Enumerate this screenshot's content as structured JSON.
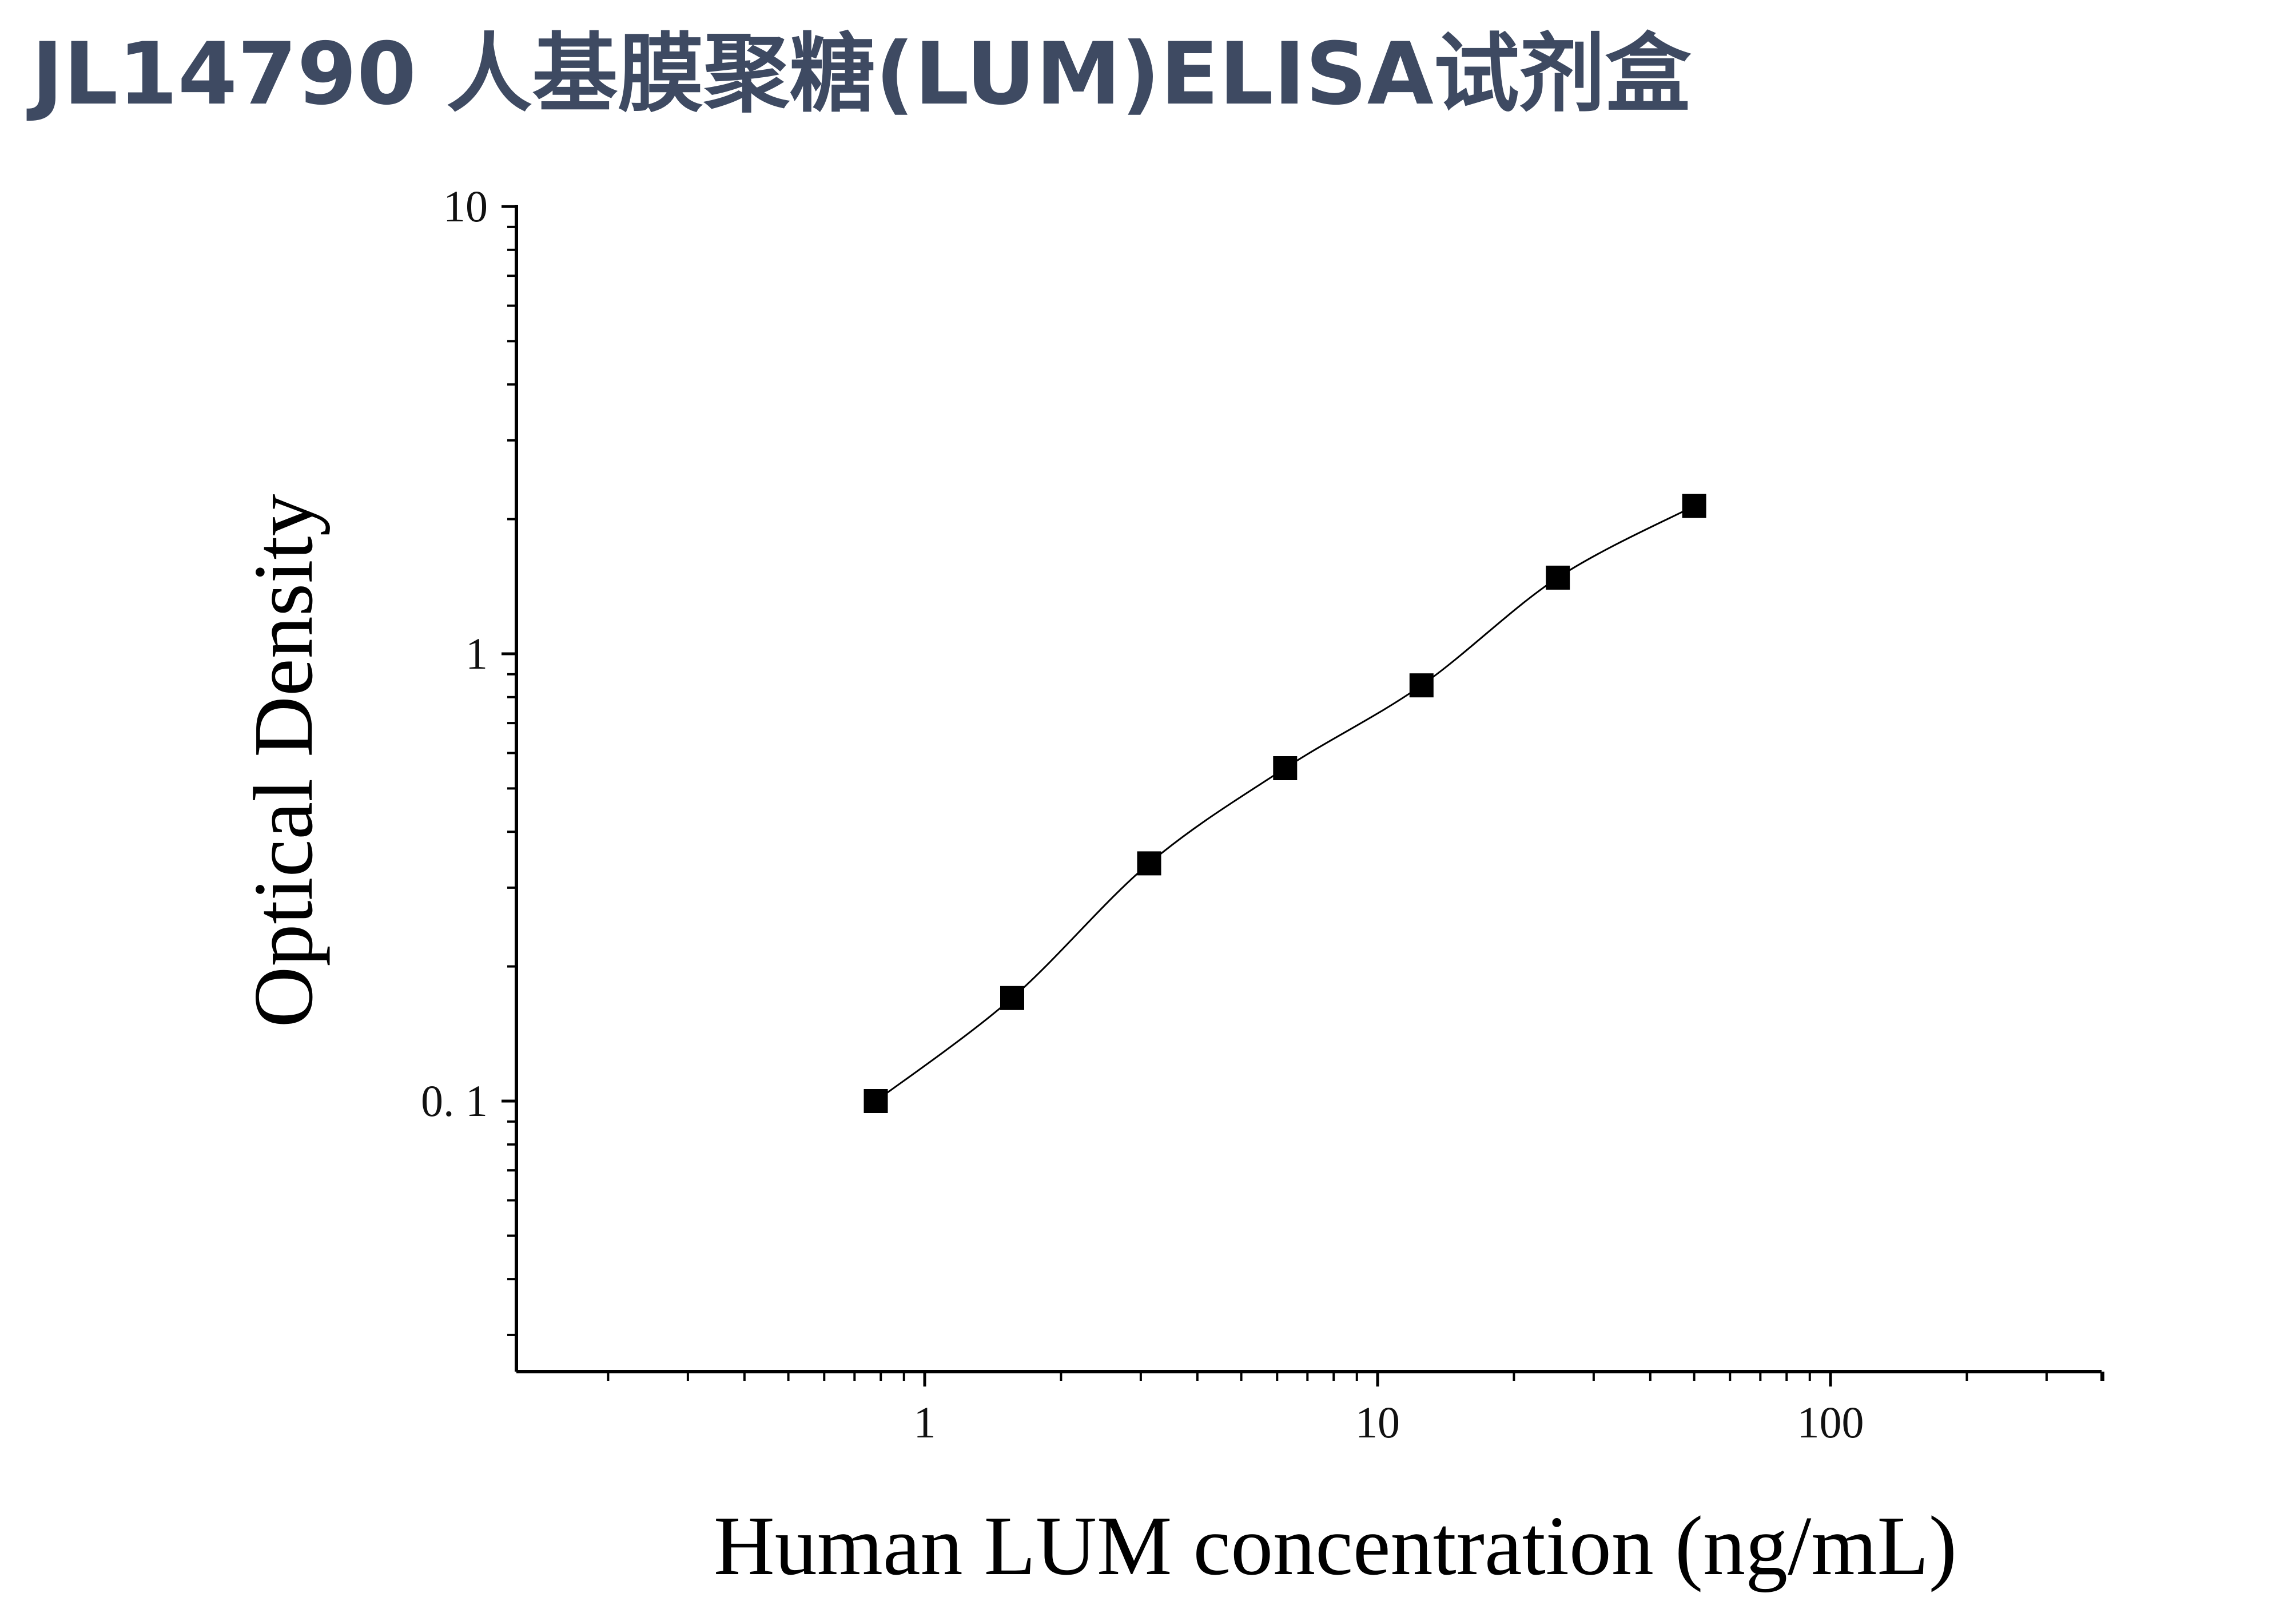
{
  "page": {
    "title": "JL14790 人基膜聚糖(LUM)ELISA试剂盒"
  },
  "colors": {
    "title": "#3e4a62",
    "axis": "#000000",
    "marker": "#000000",
    "curve": "#000000"
  },
  "chart_data": {
    "type": "scatter",
    "title": "",
    "xlabel": "Human LUM concentration (ng/mL)",
    "ylabel": "Optical Density",
    "x_scale": "log",
    "y_scale": "log",
    "xlim": [
      0.1,
      400
    ],
    "ylim": [
      0.025,
      10
    ],
    "x_ticks": [
      {
        "value": 1,
        "label": "1"
      },
      {
        "value": 10,
        "label": "10"
      },
      {
        "value": 100,
        "label": "100"
      }
    ],
    "y_ticks": [
      {
        "value": 0.1,
        "label": "0. 1"
      },
      {
        "value": 1,
        "label": "1"
      },
      {
        "value": 10,
        "label": "10"
      }
    ],
    "grid": false,
    "legend": "none",
    "marker": "square",
    "fit_curve": true,
    "series": [
      {
        "x": [
          0.78,
          1.56,
          3.13,
          6.25,
          12.5,
          25,
          50
        ],
        "y": [
          0.1,
          0.17,
          0.34,
          0.555,
          0.85,
          1.48,
          2.14
        ]
      }
    ]
  }
}
